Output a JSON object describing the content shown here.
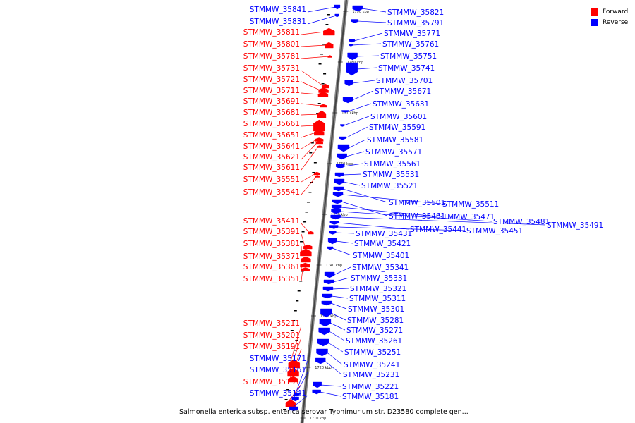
{
  "legend": {
    "forward": {
      "label": "Forward",
      "color": "#ff0000"
    },
    "reverse": {
      "label": "Reverse",
      "color": "#0000ff"
    }
  },
  "caption": "Salmonella enterica subsp. enterica serovar Typhimurium str. D23580 complete gen...",
  "backbone_ticks": [
    "1790 kbp",
    "1780 kbp",
    "1770 kbp",
    "1760 kbp",
    "1750 kbp",
    "1740 kbp",
    "1730 kbp",
    "1720 kbp",
    "1710 kbp"
  ],
  "forward_genes": [
    "STMMW_35811",
    "STMMW_35801",
    "STMMW_35781",
    "STMMW_35731",
    "STMMW_35721",
    "STMMW_35711",
    "STMMW_35691",
    "STMMW_35681",
    "STMMW_35661",
    "STMMW_35651",
    "STMMW_35641",
    "STMMW_35621",
    "STMMW_35611",
    "STMMW_35551",
    "STMMW_35541",
    "STMMW_35411",
    "STMMW_35391",
    "STMMW_35381",
    "STMMW_35371",
    "STMMW_35361",
    "STMMW_35351",
    "STMMW_35211",
    "STMMW_35201",
    "STMMW_35191",
    "STMMW_35151"
  ],
  "reverse_left_genes": [
    "STMMW_35841",
    "STMMW_35831",
    "STMMW_35171",
    "STMMW_35161",
    "STMMW_35141"
  ],
  "reverse_right_genes": [
    "STMMW_35821",
    "STMMW_35791",
    "STMMW_35771",
    "STMMW_35761",
    "STMMW_35751",
    "STMMW_35741",
    "STMMW_35701",
    "STMMW_35671",
    "STMMW_35631",
    "STMMW_35601",
    "STMMW_35591",
    "STMMW_35581",
    "STMMW_35571",
    "STMMW_35561",
    "STMMW_35531",
    "STMMW_35521",
    "STMMW_35501",
    "STMMW_35511",
    "STMMW_35461",
    "STMMW_35471",
    "STMMW_35481",
    "STMMW_35491",
    "STMMW_35441",
    "STMMW_35451",
    "STMMW_35431",
    "STMMW_35421",
    "STMMW_35401",
    "STMMW_35341",
    "STMMW_35331",
    "STMMW_35321",
    "STMMW_35311",
    "STMMW_35301",
    "STMMW_35281",
    "STMMW_35271",
    "STMMW_35261",
    "STMMW_35251",
    "STMMW_35241",
    "STMMW_35231",
    "STMMW_35221",
    "STMMW_35181"
  ]
}
